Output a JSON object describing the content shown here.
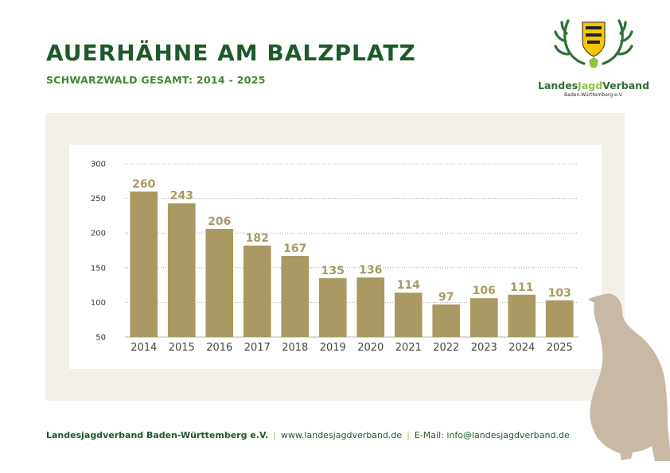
{
  "header": {
    "title": "AUERHÄHNE AM BALZPLATZ",
    "subtitle": "SCHWARZWALD GESAMT: 2014 - 2025"
  },
  "logo": {
    "name_part1": "Landes",
    "name_part2": "Jagd",
    "name_part3": "Verband",
    "subline": "Baden-Württemberg e.V."
  },
  "colors": {
    "title": "#1d5a2b",
    "subtitle": "#3d8a2c",
    "bar": "#a89a62",
    "value_label": "#a89a62",
    "panel": "#f2f0e9",
    "bird": "#c8b9a6"
  },
  "chart_data": {
    "type": "bar",
    "categories": [
      "2014",
      "2015",
      "2016",
      "2017",
      "2018",
      "2019",
      "2020",
      "2021",
      "2022",
      "2023",
      "2024",
      "2025"
    ],
    "values": [
      260,
      243,
      206,
      182,
      167,
      135,
      136,
      114,
      97,
      106,
      111,
      103
    ],
    "title": "",
    "xlabel": "",
    "ylabel": "",
    "ylim": [
      50,
      300
    ],
    "yticks": [
      50,
      100,
      150,
      200,
      250,
      300
    ],
    "grid": true,
    "grid_style": "dotted",
    "data_labels": true
  },
  "footer": {
    "org": "Landesjagdverband Baden-Württemberg e.V.",
    "separator": "|",
    "web": "www.landesjagdverband.de",
    "email": "E-Mail: info@landesjagdverband.de"
  }
}
